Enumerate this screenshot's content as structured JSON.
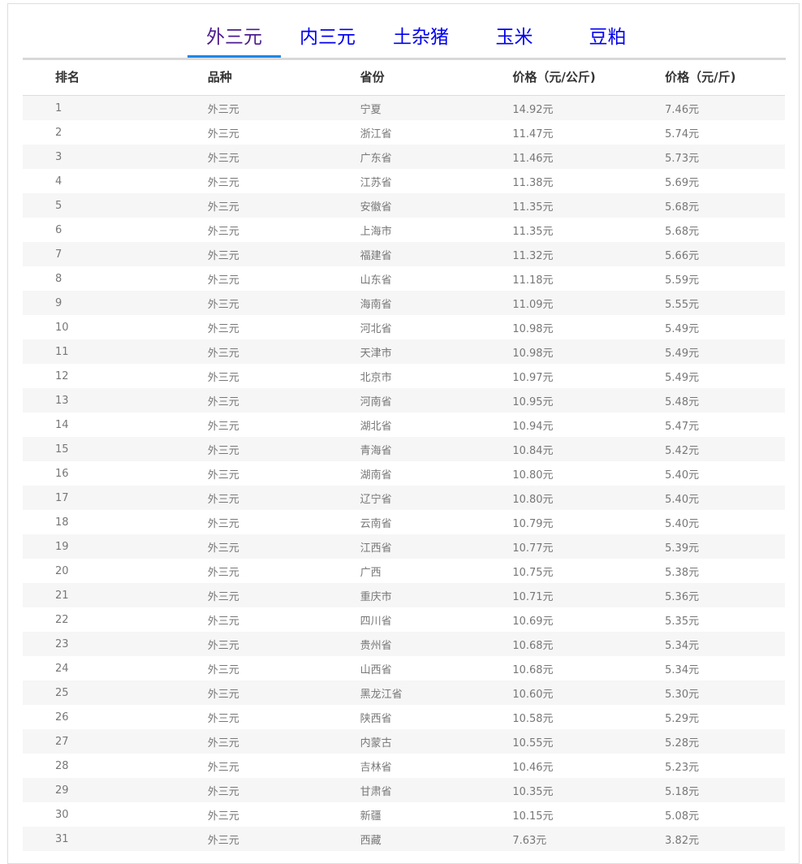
{
  "tabs": [
    "外三元",
    "内三元",
    "土杂猪",
    "玉米",
    "豆粕"
  ],
  "active_tab": 0,
  "colors": {
    "active_tab_text": "#4b1a8f",
    "tab_text": "#0000ee",
    "active_underline": "#1e88e5"
  },
  "table": {
    "headers": [
      "排名",
      "品种",
      "省份",
      "价格（元/公斤)",
      "价格（元/斤)"
    ],
    "rows": [
      [
        "1",
        "外三元",
        "宁夏",
        "14.92元",
        "7.46元"
      ],
      [
        "2",
        "外三元",
        "浙江省",
        "11.47元",
        "5.74元"
      ],
      [
        "3",
        "外三元",
        "广东省",
        "11.46元",
        "5.73元"
      ],
      [
        "4",
        "外三元",
        "江苏省",
        "11.38元",
        "5.69元"
      ],
      [
        "5",
        "外三元",
        "安徽省",
        "11.35元",
        "5.68元"
      ],
      [
        "6",
        "外三元",
        "上海市",
        "11.35元",
        "5.68元"
      ],
      [
        "7",
        "外三元",
        "福建省",
        "11.32元",
        "5.66元"
      ],
      [
        "8",
        "外三元",
        "山东省",
        "11.18元",
        "5.59元"
      ],
      [
        "9",
        "外三元",
        "海南省",
        "11.09元",
        "5.55元"
      ],
      [
        "10",
        "外三元",
        "河北省",
        "10.98元",
        "5.49元"
      ],
      [
        "11",
        "外三元",
        "天津市",
        "10.98元",
        "5.49元"
      ],
      [
        "12",
        "外三元",
        "北京市",
        "10.97元",
        "5.49元"
      ],
      [
        "13",
        "外三元",
        "河南省",
        "10.95元",
        "5.48元"
      ],
      [
        "14",
        "外三元",
        "湖北省",
        "10.94元",
        "5.47元"
      ],
      [
        "15",
        "外三元",
        "青海省",
        "10.84元",
        "5.42元"
      ],
      [
        "16",
        "外三元",
        "湖南省",
        "10.80元",
        "5.40元"
      ],
      [
        "17",
        "外三元",
        "辽宁省",
        "10.80元",
        "5.40元"
      ],
      [
        "18",
        "外三元",
        "云南省",
        "10.79元",
        "5.40元"
      ],
      [
        "19",
        "外三元",
        "江西省",
        "10.77元",
        "5.39元"
      ],
      [
        "20",
        "外三元",
        "广西",
        "10.75元",
        "5.38元"
      ],
      [
        "21",
        "外三元",
        "重庆市",
        "10.71元",
        "5.36元"
      ],
      [
        "22",
        "外三元",
        "四川省",
        "10.69元",
        "5.35元"
      ],
      [
        "23",
        "外三元",
        "贵州省",
        "10.68元",
        "5.34元"
      ],
      [
        "24",
        "外三元",
        "山西省",
        "10.68元",
        "5.34元"
      ],
      [
        "25",
        "外三元",
        "黑龙江省",
        "10.60元",
        "5.30元"
      ],
      [
        "26",
        "外三元",
        "陕西省",
        "10.58元",
        "5.29元"
      ],
      [
        "27",
        "外三元",
        "内蒙古",
        "10.55元",
        "5.28元"
      ],
      [
        "28",
        "外三元",
        "吉林省",
        "10.46元",
        "5.23元"
      ],
      [
        "29",
        "外三元",
        "甘肃省",
        "10.35元",
        "5.18元"
      ],
      [
        "30",
        "外三元",
        "新疆",
        "10.15元",
        "5.08元"
      ],
      [
        "31",
        "外三元",
        "西藏",
        "7.63元",
        "3.82元"
      ]
    ]
  }
}
